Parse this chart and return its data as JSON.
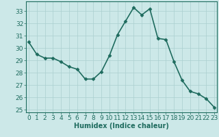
{
  "x": [
    0,
    1,
    2,
    3,
    4,
    5,
    6,
    7,
    8,
    9,
    10,
    11,
    12,
    13,
    14,
    15,
    16,
    17,
    18,
    19,
    20,
    21,
    22,
    23
  ],
  "y": [
    30.5,
    29.5,
    29.2,
    29.2,
    28.9,
    28.5,
    28.3,
    27.5,
    27.5,
    28.1,
    29.4,
    31.1,
    32.2,
    33.3,
    32.7,
    33.2,
    30.8,
    30.7,
    28.9,
    27.4,
    26.5,
    26.3,
    25.9,
    25.2
  ],
  "xlabel": "Humidex (Indice chaleur)",
  "bg_color": "#cce8e8",
  "line_color": "#1e6b5e",
  "grid_color": "#aacfcf",
  "ylim": [
    24.8,
    33.8
  ],
  "xlim": [
    -0.3,
    23.3
  ],
  "yticks": [
    25,
    26,
    27,
    28,
    29,
    30,
    31,
    32,
    33
  ],
  "xticks": [
    0,
    1,
    2,
    3,
    4,
    5,
    6,
    7,
    8,
    9,
    10,
    11,
    12,
    13,
    14,
    15,
    16,
    17,
    18,
    19,
    20,
    21,
    22,
    23
  ],
  "xlabel_fontsize": 7,
  "tick_fontsize": 6.5,
  "line_width": 1.2,
  "marker_size": 2.5
}
